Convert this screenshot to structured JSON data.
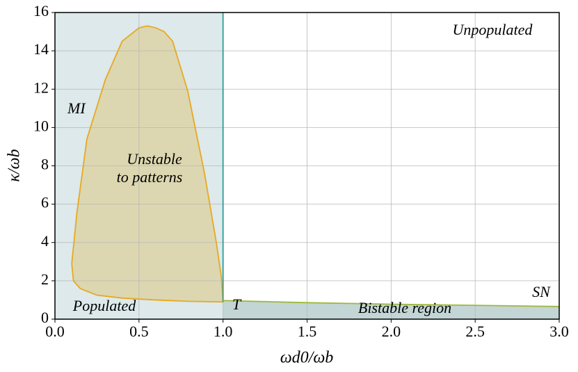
{
  "chart_data": {
    "type": "area",
    "x_label": "ωd0/ωb",
    "y_label": "κ/ωb",
    "xlim": [
      0,
      3
    ],
    "ylim": [
      0,
      16
    ],
    "xticks": [
      {
        "value": 0,
        "label": "0.0"
      },
      0.5,
      {
        "value": 1,
        "label": "1.0"
      },
      1.5,
      {
        "value": 2,
        "label": "2.0"
      },
      2.5,
      {
        "value": 3,
        "label": "3.0"
      }
    ],
    "yticks": [
      0,
      2,
      4,
      6,
      8,
      10,
      12,
      14,
      16
    ],
    "grid": true,
    "series": [
      {
        "x": [
          0,
          1,
          1,
          0
        ],
        "y": [
          0,
          0,
          16,
          16
        ],
        "fill": "#dde9ea",
        "stroke": "none"
      },
      {
        "x": [
          1,
          1,
          1.5,
          2,
          2.5,
          3,
          3
        ],
        "y": [
          0,
          0.95,
          0.85,
          0.78,
          0.72,
          0.65,
          0
        ],
        "fill": "#c3d5d5",
        "stroke": "none"
      },
      {
        "x": [
          0.99,
          0.96,
          0.89,
          0.79,
          0.7,
          0.65,
          0.6,
          0.55,
          0.5,
          0.4,
          0.3,
          0.19,
          0.13,
          0.1,
          0.11,
          0.15,
          0.25,
          0.4,
          0.6,
          0.8,
          1.0
        ],
        "y": [
          2.2,
          4,
          7.6,
          11.9,
          14.5,
          15,
          15.2,
          15.3,
          15.2,
          14.5,
          12.5,
          9.4,
          5.5,
          2.9,
          2.0,
          1.6,
          1.25,
          1.1,
          1.0,
          0.93,
          0.9
        ],
        "fill": "#dcd7b0",
        "stroke": "#e8a820"
      },
      {
        "x": [
          1,
          1
        ],
        "y": [
          0.9,
          16
        ],
        "fill": "none",
        "stroke": "#2a9d9d"
      },
      {
        "x": [
          1,
          1.5,
          2,
          2.5,
          3
        ],
        "y": [
          0.97,
          0.86,
          0.78,
          0.72,
          0.66
        ],
        "fill": "none",
        "stroke": "#9cb83a"
      }
    ],
    "annotations": [
      "MI",
      "Unstable",
      "to patterns",
      "Unpopulated",
      "SN",
      "T",
      "Populated",
      "Bistable region"
    ]
  }
}
